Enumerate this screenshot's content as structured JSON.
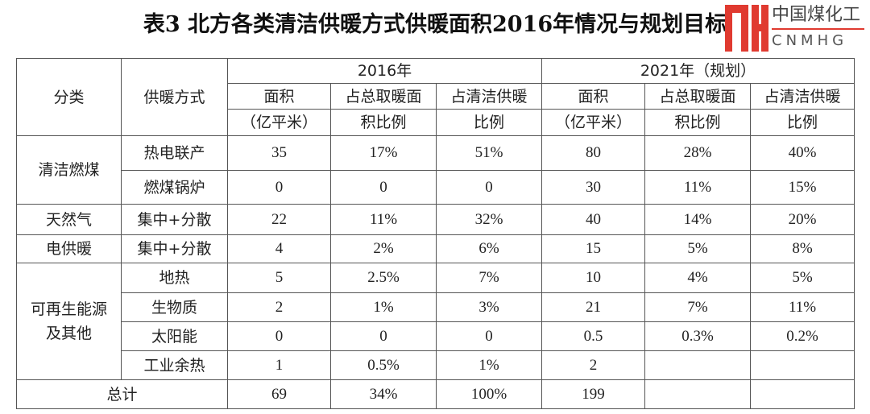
{
  "title": "表3 北方各类清洁供暖方式供暖面积2016年情况与规划目标",
  "header": {
    "category": "分类",
    "method": "供暖方式",
    "year2016": "2016年",
    "year2021": "2021年（规划）",
    "area1": "面积",
    "area2": "（亿平米）",
    "total1": "占总取暖面",
    "total2": "积比例",
    "clean1": "占清洁供暖",
    "clean2": "比例"
  },
  "groups": {
    "coal": "清洁燃煤",
    "gas": "天然气",
    "elec": "电供暖",
    "renew1": "可再生能源",
    "renew2": "及其他",
    "total": "总计"
  },
  "rows": [
    {
      "method": "热电联产",
      "v": [
        "35",
        "17%",
        "51%",
        "80",
        "28%",
        "40%"
      ]
    },
    {
      "method": "燃煤锅炉",
      "v": [
        "0",
        "0",
        "0",
        "30",
        "11%",
        "15%"
      ]
    },
    {
      "method": "集中+分散",
      "v": [
        "22",
        "11%",
        "32%",
        "40",
        "14%",
        "20%"
      ]
    },
    {
      "method": "集中+分散",
      "v": [
        "4",
        "2%",
        "6%",
        "15",
        "5%",
        "8%"
      ]
    },
    {
      "method": "地热",
      "v": [
        "5",
        "2.5%",
        "7%",
        "10",
        "4%",
        "5%"
      ]
    },
    {
      "method": "生物质",
      "v": [
        "2",
        "1%",
        "3%",
        "21",
        "7%",
        "11%"
      ]
    },
    {
      "method": "太阳能",
      "v": [
        "0",
        "0",
        "0",
        "0.5",
        "0.3%",
        "0.2%"
      ]
    },
    {
      "method": "工业余热",
      "v": [
        "1",
        "0.5%",
        "1%",
        "2",
        "",
        ""
      ]
    },
    {
      "method": "",
      "v": [
        "69",
        "34%",
        "100%",
        "199",
        "",
        ""
      ]
    }
  ],
  "watermark": {
    "cn": "中国煤化工",
    "en": "CNMHG"
  }
}
